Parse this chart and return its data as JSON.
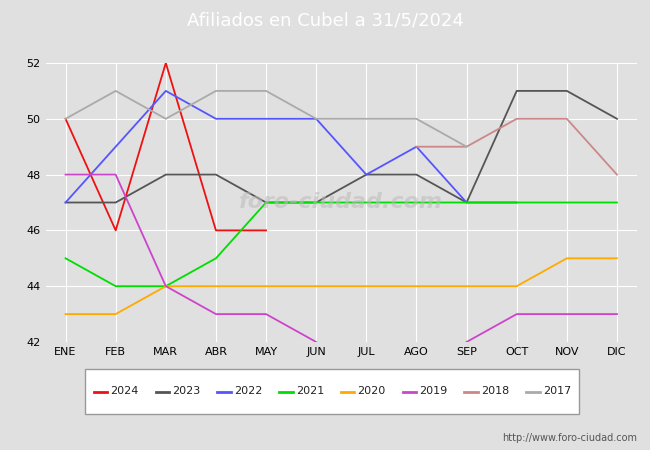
{
  "title": "Afiliados en Cubel a 31/5/2024",
  "months": [
    "ENE",
    "FEB",
    "MAR",
    "ABR",
    "MAY",
    "JUN",
    "JUL",
    "AGO",
    "SEP",
    "OCT",
    "NOV",
    "DIC"
  ],
  "ylim": [
    42,
    52
  ],
  "yticks": [
    42,
    44,
    46,
    48,
    50,
    52
  ],
  "series": {
    "2024": {
      "color": "#ee1111",
      "data": [
        50,
        46,
        52,
        46,
        46,
        null,
        null,
        null,
        null,
        null,
        null,
        null
      ]
    },
    "2023": {
      "color": "#555555",
      "data": [
        47,
        47,
        48,
        48,
        47,
        47,
        48,
        48,
        47,
        51,
        51,
        50
      ]
    },
    "2022": {
      "color": "#5555ff",
      "data": [
        47,
        49,
        51,
        50,
        50,
        50,
        48,
        49,
        47,
        47,
        null,
        null
      ]
    },
    "2021": {
      "color": "#00dd00",
      "data": [
        45,
        44,
        44,
        45,
        47,
        47,
        47,
        47,
        47,
        47,
        47,
        47
      ]
    },
    "2020": {
      "color": "#ffaa00",
      "data": [
        43,
        43,
        44,
        44,
        44,
        44,
        44,
        44,
        44,
        44,
        45,
        45
      ]
    },
    "2019": {
      "color": "#cc44cc",
      "data": [
        48,
        48,
        44,
        43,
        43,
        42,
        null,
        null,
        42,
        43,
        43,
        43
      ]
    },
    "2018": {
      "color": "#cc8888",
      "data": [
        null,
        null,
        null,
        null,
        null,
        null,
        null,
        49,
        49,
        50,
        50,
        48
      ]
    },
    "2017": {
      "color": "#aaaaaa",
      "data": [
        50,
        51,
        50,
        51,
        51,
        50,
        50,
        50,
        49,
        null,
        null,
        50
      ]
    }
  },
  "bg_color": "#e0e0e0",
  "plot_bg": "#e0e0e0",
  "grid_color": "#ffffff",
  "header_bg": "#5599dd",
  "watermark": "foro-ciudad.com",
  "url": "http://www.foro-ciudad.com",
  "legend_years": [
    "2024",
    "2023",
    "2022",
    "2021",
    "2020",
    "2019",
    "2018",
    "2017"
  ]
}
